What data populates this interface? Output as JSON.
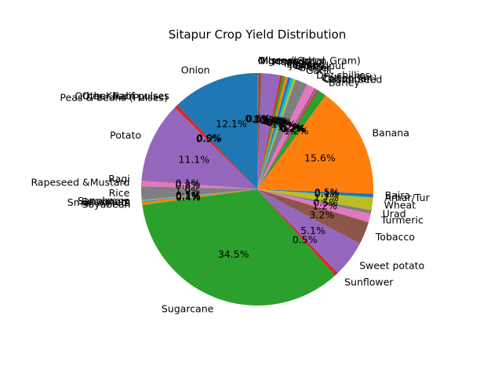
{
  "chart_data": {
    "type": "pie",
    "title": "Sitapur Crop Yield Distribution",
    "start_angle_deg": 90,
    "direction": "counterclockwise",
    "label_format": "percent_one_decimal",
    "colors": [
      "#1f77b4",
      "#ff7f0e",
      "#2ca02c",
      "#d62728",
      "#9467bd",
      "#8c564b",
      "#e377c2",
      "#7f7f7f",
      "#bcbd22",
      "#17becf"
    ],
    "slices": [
      {
        "label": "Onion",
        "value": 12.2
      },
      {
        "label": "Other Kharif pulses",
        "value": 0.0
      },
      {
        "label": "Other Rabi pulses",
        "value": 0.0
      },
      {
        "label": "Peas & beans (Pulses)",
        "value": 0.5
      },
      {
        "label": "Potato",
        "value": 11.2
      },
      {
        "label": "Ragi",
        "value": 0.1
      },
      {
        "label": "Rapeseed &Mustard",
        "value": 0.8
      },
      {
        "label": "Rice",
        "value": 1.9
      },
      {
        "label": "Sannhamp",
        "value": 0.1
      },
      {
        "label": "Sesamum",
        "value": 0.1
      },
      {
        "label": "Small millets",
        "value": 0.1
      },
      {
        "label": "Soyabean",
        "value": 0.4
      },
      {
        "label": "Sugarcane",
        "value": 34.8
      },
      {
        "label": "Sunflower",
        "value": 0.5
      },
      {
        "label": "Sweet potato",
        "value": 5.1
      },
      {
        "label": "Tobacco",
        "value": 3.2
      },
      {
        "label": "Turmeric",
        "value": 1.2
      },
      {
        "label": "Urad",
        "value": 0.5
      },
      {
        "label": "Wheat",
        "value": 1.7
      },
      {
        "label": "Arhar/Tur",
        "value": 0.1
      },
      {
        "label": "Bajra",
        "value": 0.5
      },
      {
        "label": "Banana",
        "value": 15.7
      },
      {
        "label": "Barley",
        "value": 1.2
      },
      {
        "label": "Castor seed",
        "value": 0.2
      },
      {
        "label": "Coriander",
        "value": 0.2
      },
      {
        "label": "Cotton(lint)",
        "value": 0.2
      },
      {
        "label": "Dry chillies",
        "value": 1.2
      },
      {
        "label": "Garlic",
        "value": 1.7
      },
      {
        "label": "Ginger",
        "value": 0.3
      },
      {
        "label": "Gram",
        "value": 0.4
      },
      {
        "label": "Groundnut",
        "value": 0.4
      },
      {
        "label": "Jowar",
        "value": 0.4
      },
      {
        "label": "Linseed",
        "value": 0.4
      },
      {
        "label": "Maize",
        "value": 0.3
      },
      {
        "label": "Masoor",
        "value": 2.6
      },
      {
        "label": "Moong(Green Gram)",
        "value": 0.5
      },
      {
        "label": "Niger seed",
        "value": 0.0
      },
      {
        "label": "Oilseeds total",
        "value": 0.1
      }
    ]
  }
}
